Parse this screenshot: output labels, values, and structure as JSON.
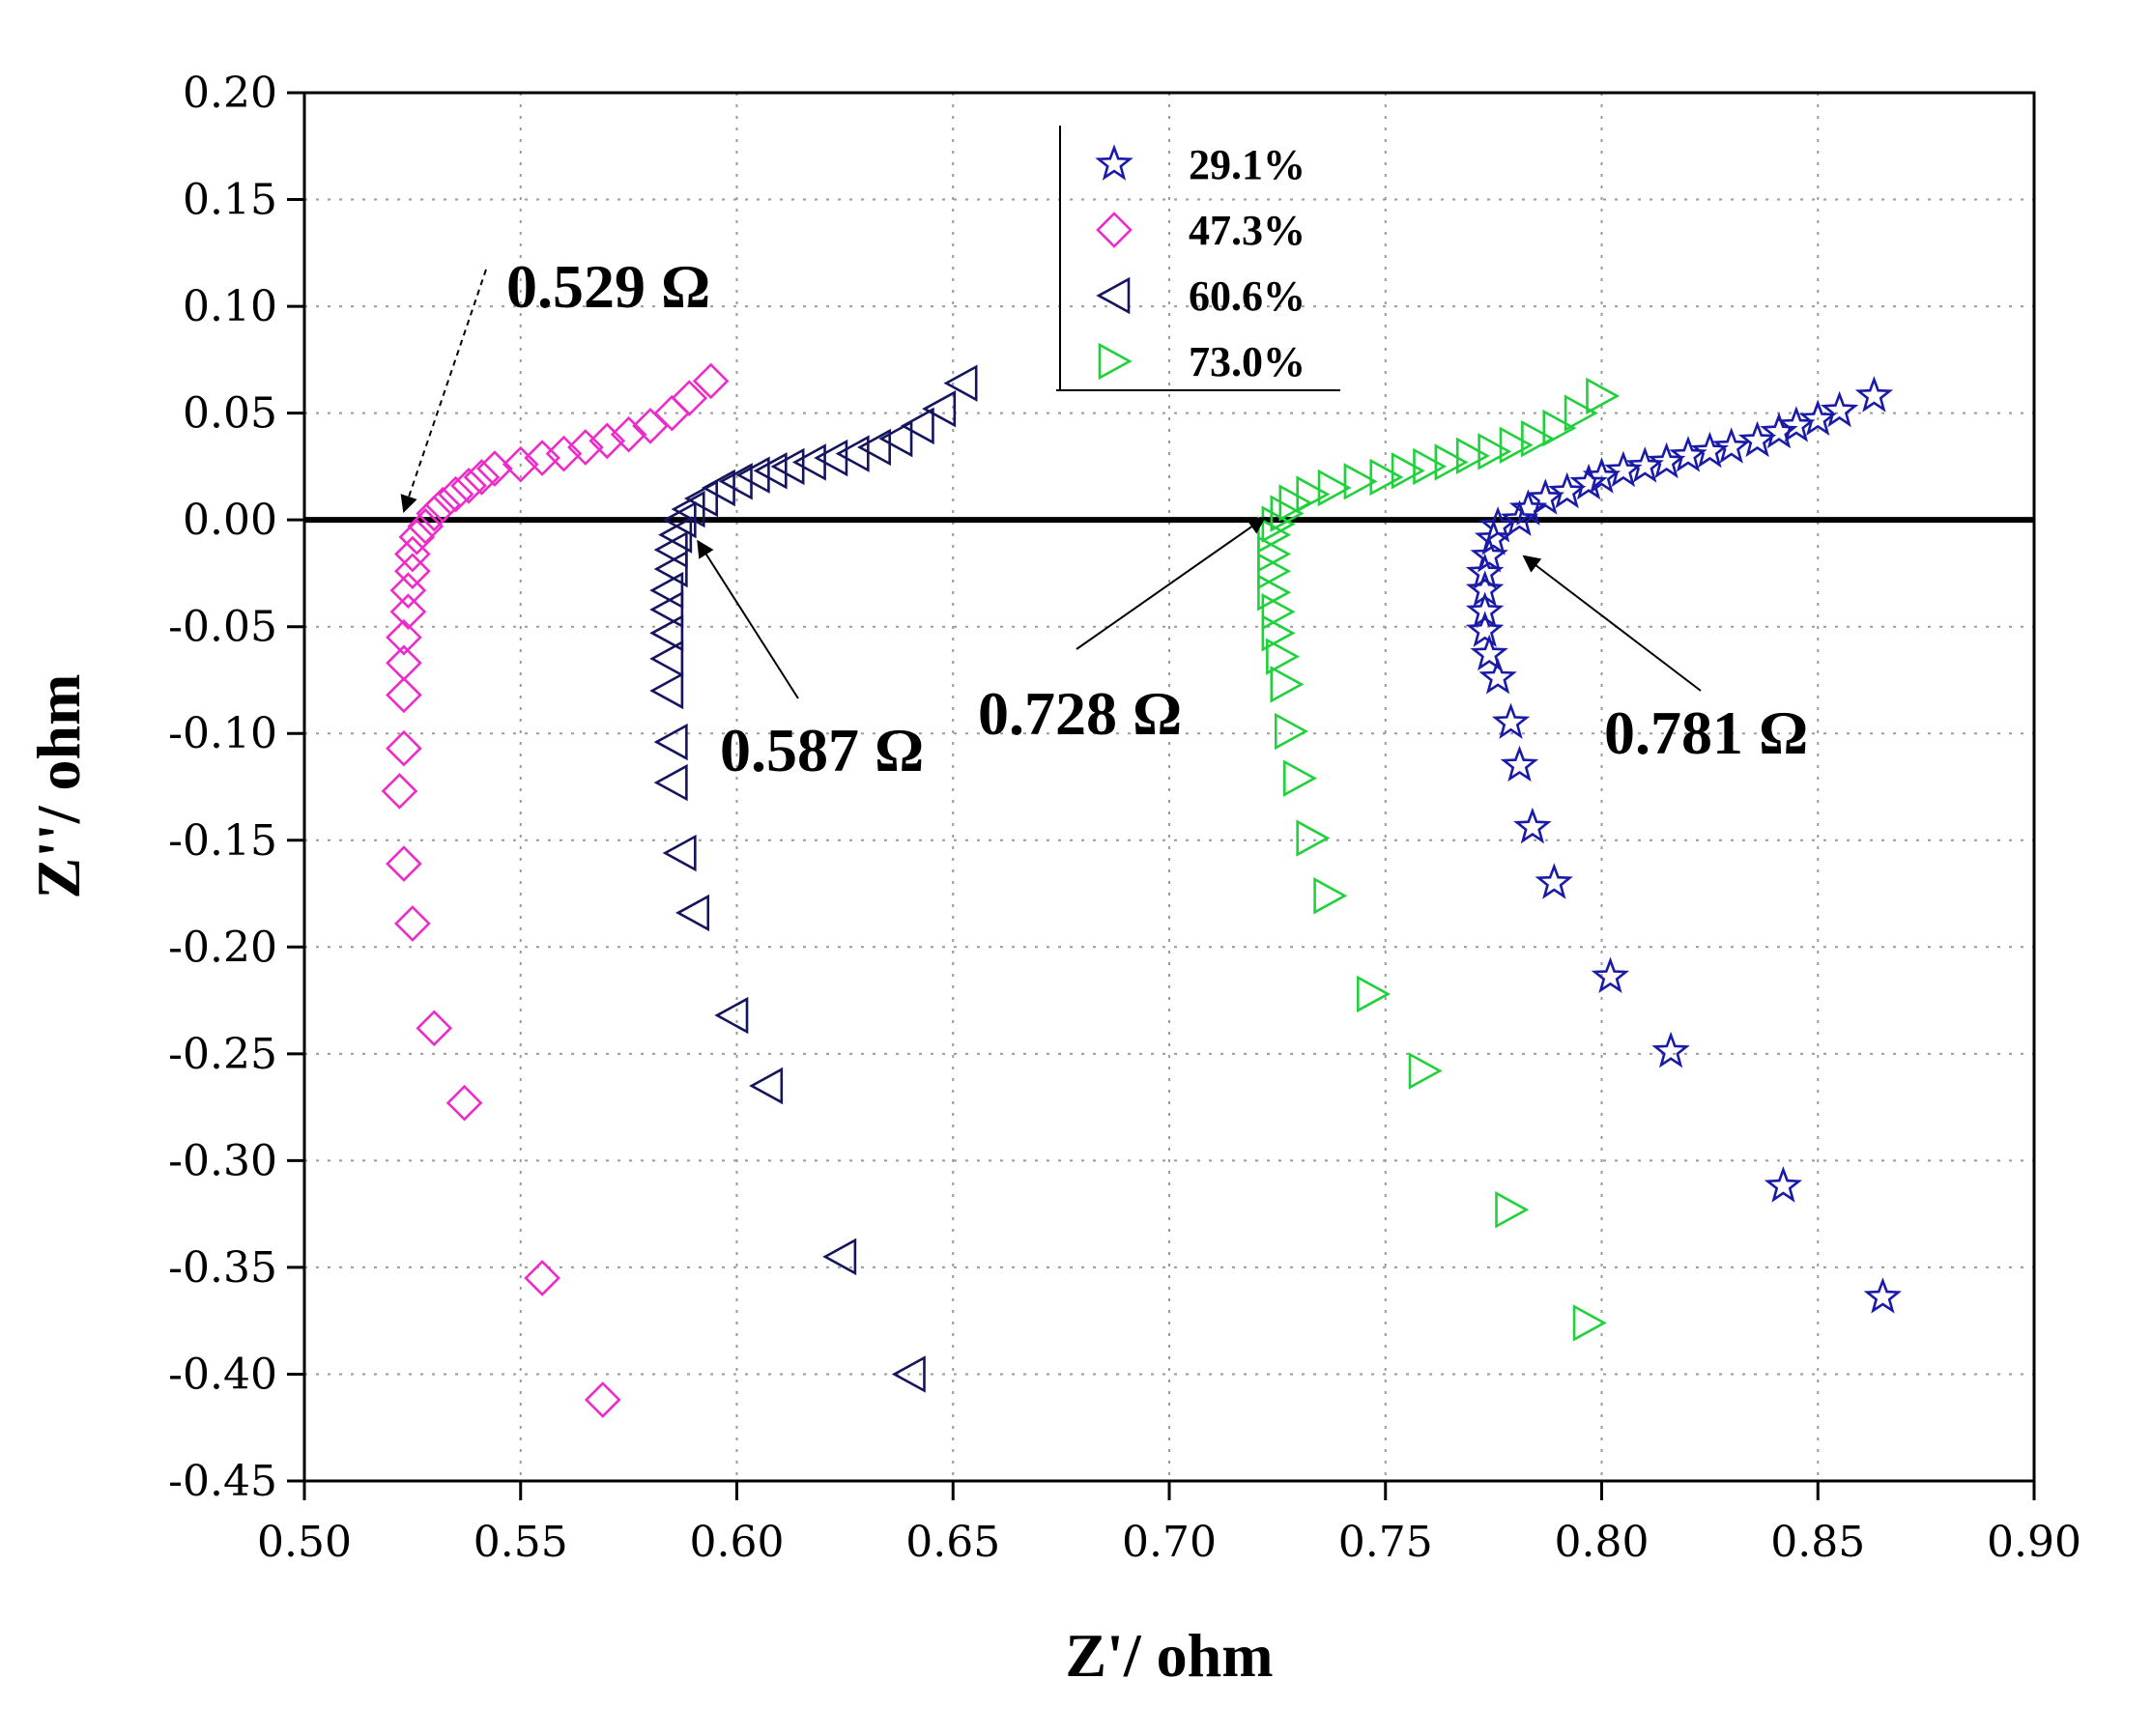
{
  "chart_data": {
    "type": "scatter",
    "title": "",
    "xlabel": "Z'/ ohm",
    "ylabel": "Z''/ ohm",
    "xlim": [
      0.5,
      0.9
    ],
    "ylim": [
      -0.45,
      0.2
    ],
    "x_ticks": [
      0.5,
      0.55,
      0.6,
      0.65,
      0.7,
      0.75,
      0.8,
      0.85,
      0.9
    ],
    "y_ticks": [
      0.2,
      0.15,
      0.1,
      0.05,
      0.0,
      -0.05,
      -0.1,
      -0.15,
      -0.2,
      -0.25,
      -0.3,
      -0.35,
      -0.4,
      -0.45
    ],
    "x_tick_labels": [
      "0.50",
      "0.55",
      "0.60",
      "0.65",
      "0.70",
      "0.75",
      "0.80",
      "0.85",
      "0.90"
    ],
    "y_tick_labels": [
      "0.20",
      "0.15",
      "0.10",
      "0.05",
      "0.00",
      "-0.05",
      "-0.10",
      "-0.15",
      "-0.20",
      "-0.25",
      "-0.30",
      "-0.35",
      "-0.40",
      "-0.45"
    ],
    "grid": "dotted",
    "legend_position": "top-center",
    "reference_line_y": 0.0,
    "series": [
      {
        "name": "29.1%",
        "marker": "star",
        "color": "#1a1aa8",
        "points": [
          [
            0.865,
            -0.364
          ],
          [
            0.842,
            -0.312
          ],
          [
            0.816,
            -0.249
          ],
          [
            0.802,
            -0.214
          ],
          [
            0.789,
            -0.17
          ],
          [
            0.784,
            -0.144
          ],
          [
            0.781,
            -0.115
          ],
          [
            0.779,
            -0.095
          ],
          [
            0.776,
            -0.074
          ],
          [
            0.774,
            -0.063
          ],
          [
            0.773,
            -0.052
          ],
          [
            0.773,
            -0.043
          ],
          [
            0.773,
            -0.033
          ],
          [
            0.773,
            -0.025
          ],
          [
            0.774,
            -0.017
          ],
          [
            0.775,
            -0.009
          ],
          [
            0.776,
            -0.003
          ],
          [
            0.781,
            0.0
          ],
          [
            0.783,
            0.005
          ],
          [
            0.787,
            0.01
          ],
          [
            0.792,
            0.013
          ],
          [
            0.797,
            0.017
          ],
          [
            0.8,
            0.02
          ],
          [
            0.805,
            0.023
          ],
          [
            0.81,
            0.025
          ],
          [
            0.815,
            0.027
          ],
          [
            0.82,
            0.03
          ],
          [
            0.825,
            0.032
          ],
          [
            0.83,
            0.034
          ],
          [
            0.836,
            0.037
          ],
          [
            0.841,
            0.041
          ],
          [
            0.845,
            0.044
          ],
          [
            0.85,
            0.047
          ],
          [
            0.855,
            0.051
          ],
          [
            0.863,
            0.058
          ]
        ]
      },
      {
        "name": "47.3%",
        "marker": "diamond",
        "color": "#ee2bc9",
        "points": [
          [
            0.569,
            -0.412
          ],
          [
            0.555,
            -0.355
          ],
          [
            0.537,
            -0.273
          ],
          [
            0.53,
            -0.238
          ],
          [
            0.525,
            -0.189
          ],
          [
            0.523,
            -0.161
          ],
          [
            0.522,
            -0.127
          ],
          [
            0.523,
            -0.107
          ],
          [
            0.523,
            -0.082
          ],
          [
            0.523,
            -0.067
          ],
          [
            0.523,
            -0.055
          ],
          [
            0.524,
            -0.043
          ],
          [
            0.524,
            -0.033
          ],
          [
            0.525,
            -0.024
          ],
          [
            0.525,
            -0.016
          ],
          [
            0.526,
            -0.008
          ],
          [
            0.528,
            -0.003
          ],
          [
            0.53,
            0.003
          ],
          [
            0.532,
            0.007
          ],
          [
            0.535,
            0.012
          ],
          [
            0.538,
            0.016
          ],
          [
            0.541,
            0.02
          ],
          [
            0.544,
            0.024
          ],
          [
            0.55,
            0.026
          ],
          [
            0.555,
            0.029
          ],
          [
            0.56,
            0.031
          ],
          [
            0.565,
            0.034
          ],
          [
            0.57,
            0.037
          ],
          [
            0.575,
            0.04
          ],
          [
            0.58,
            0.044
          ],
          [
            0.585,
            0.05
          ],
          [
            0.589,
            0.057
          ],
          [
            0.594,
            0.065
          ]
        ]
      },
      {
        "name": "60.6%",
        "marker": "triangle-left",
        "color": "#15155e",
        "points": [
          [
            0.64,
            -0.4
          ],
          [
            0.624,
            -0.345
          ],
          [
            0.607,
            -0.265
          ],
          [
            0.599,
            -0.232
          ],
          [
            0.59,
            -0.184
          ],
          [
            0.587,
            -0.156
          ],
          [
            0.585,
            -0.123
          ],
          [
            0.585,
            -0.104
          ],
          [
            0.584,
            -0.08
          ],
          [
            0.584,
            -0.065
          ],
          [
            0.584,
            -0.053
          ],
          [
            0.584,
            -0.042
          ],
          [
            0.584,
            -0.033
          ],
          [
            0.585,
            -0.023
          ],
          [
            0.585,
            -0.014
          ],
          [
            0.586,
            -0.007
          ],
          [
            0.587,
            0.0
          ],
          [
            0.589,
            0.005
          ],
          [
            0.592,
            0.01
          ],
          [
            0.596,
            0.015
          ],
          [
            0.6,
            0.018
          ],
          [
            0.604,
            0.021
          ],
          [
            0.608,
            0.023
          ],
          [
            0.612,
            0.025
          ],
          [
            0.617,
            0.027
          ],
          [
            0.622,
            0.029
          ],
          [
            0.627,
            0.031
          ],
          [
            0.632,
            0.034
          ],
          [
            0.637,
            0.038
          ],
          [
            0.642,
            0.044
          ],
          [
            0.647,
            0.052
          ],
          [
            0.652,
            0.064
          ]
        ]
      },
      {
        "name": "73.0%",
        "marker": "triangle-right",
        "color": "#1fd13a",
        "points": [
          [
            0.797,
            -0.376
          ],
          [
            0.779,
            -0.323
          ],
          [
            0.759,
            -0.258
          ],
          [
            0.747,
            -0.222
          ],
          [
            0.737,
            -0.176
          ],
          [
            0.733,
            -0.149
          ],
          [
            0.73,
            -0.121
          ],
          [
            0.728,
            -0.099
          ],
          [
            0.727,
            -0.077
          ],
          [
            0.726,
            -0.064
          ],
          [
            0.725,
            -0.053
          ],
          [
            0.725,
            -0.043
          ],
          [
            0.724,
            -0.034
          ],
          [
            0.724,
            -0.024
          ],
          [
            0.724,
            -0.016
          ],
          [
            0.724,
            -0.007
          ],
          [
            0.725,
            -0.002
          ],
          [
            0.727,
            0.003
          ],
          [
            0.729,
            0.008
          ],
          [
            0.733,
            0.012
          ],
          [
            0.738,
            0.015
          ],
          [
            0.744,
            0.018
          ],
          [
            0.75,
            0.02
          ],
          [
            0.755,
            0.023
          ],
          [
            0.76,
            0.025
          ],
          [
            0.765,
            0.027
          ],
          [
            0.77,
            0.03
          ],
          [
            0.775,
            0.032
          ],
          [
            0.78,
            0.035
          ],
          [
            0.785,
            0.038
          ],
          [
            0.79,
            0.043
          ],
          [
            0.795,
            0.05
          ],
          [
            0.8,
            0.058
          ]
        ]
      }
    ],
    "annotations": [
      {
        "text": "0.529 Ω",
        "target": [
          0.523,
          0.004
        ],
        "label_anchor": [
          0.543,
          0.106
        ]
      },
      {
        "text": "0.587 Ω",
        "target": [
          0.591,
          -0.01
        ],
        "label_anchor": [
          0.615,
          -0.101
        ]
      },
      {
        "text": "0.728 Ω",
        "target": [
          0.722,
          0.001
        ],
        "label_anchor": [
          0.697,
          -0.093
        ]
      },
      {
        "text": "0.781 Ω",
        "target": [
          0.782,
          -0.017
        ],
        "label_anchor": [
          0.823,
          -0.095
        ]
      }
    ]
  }
}
